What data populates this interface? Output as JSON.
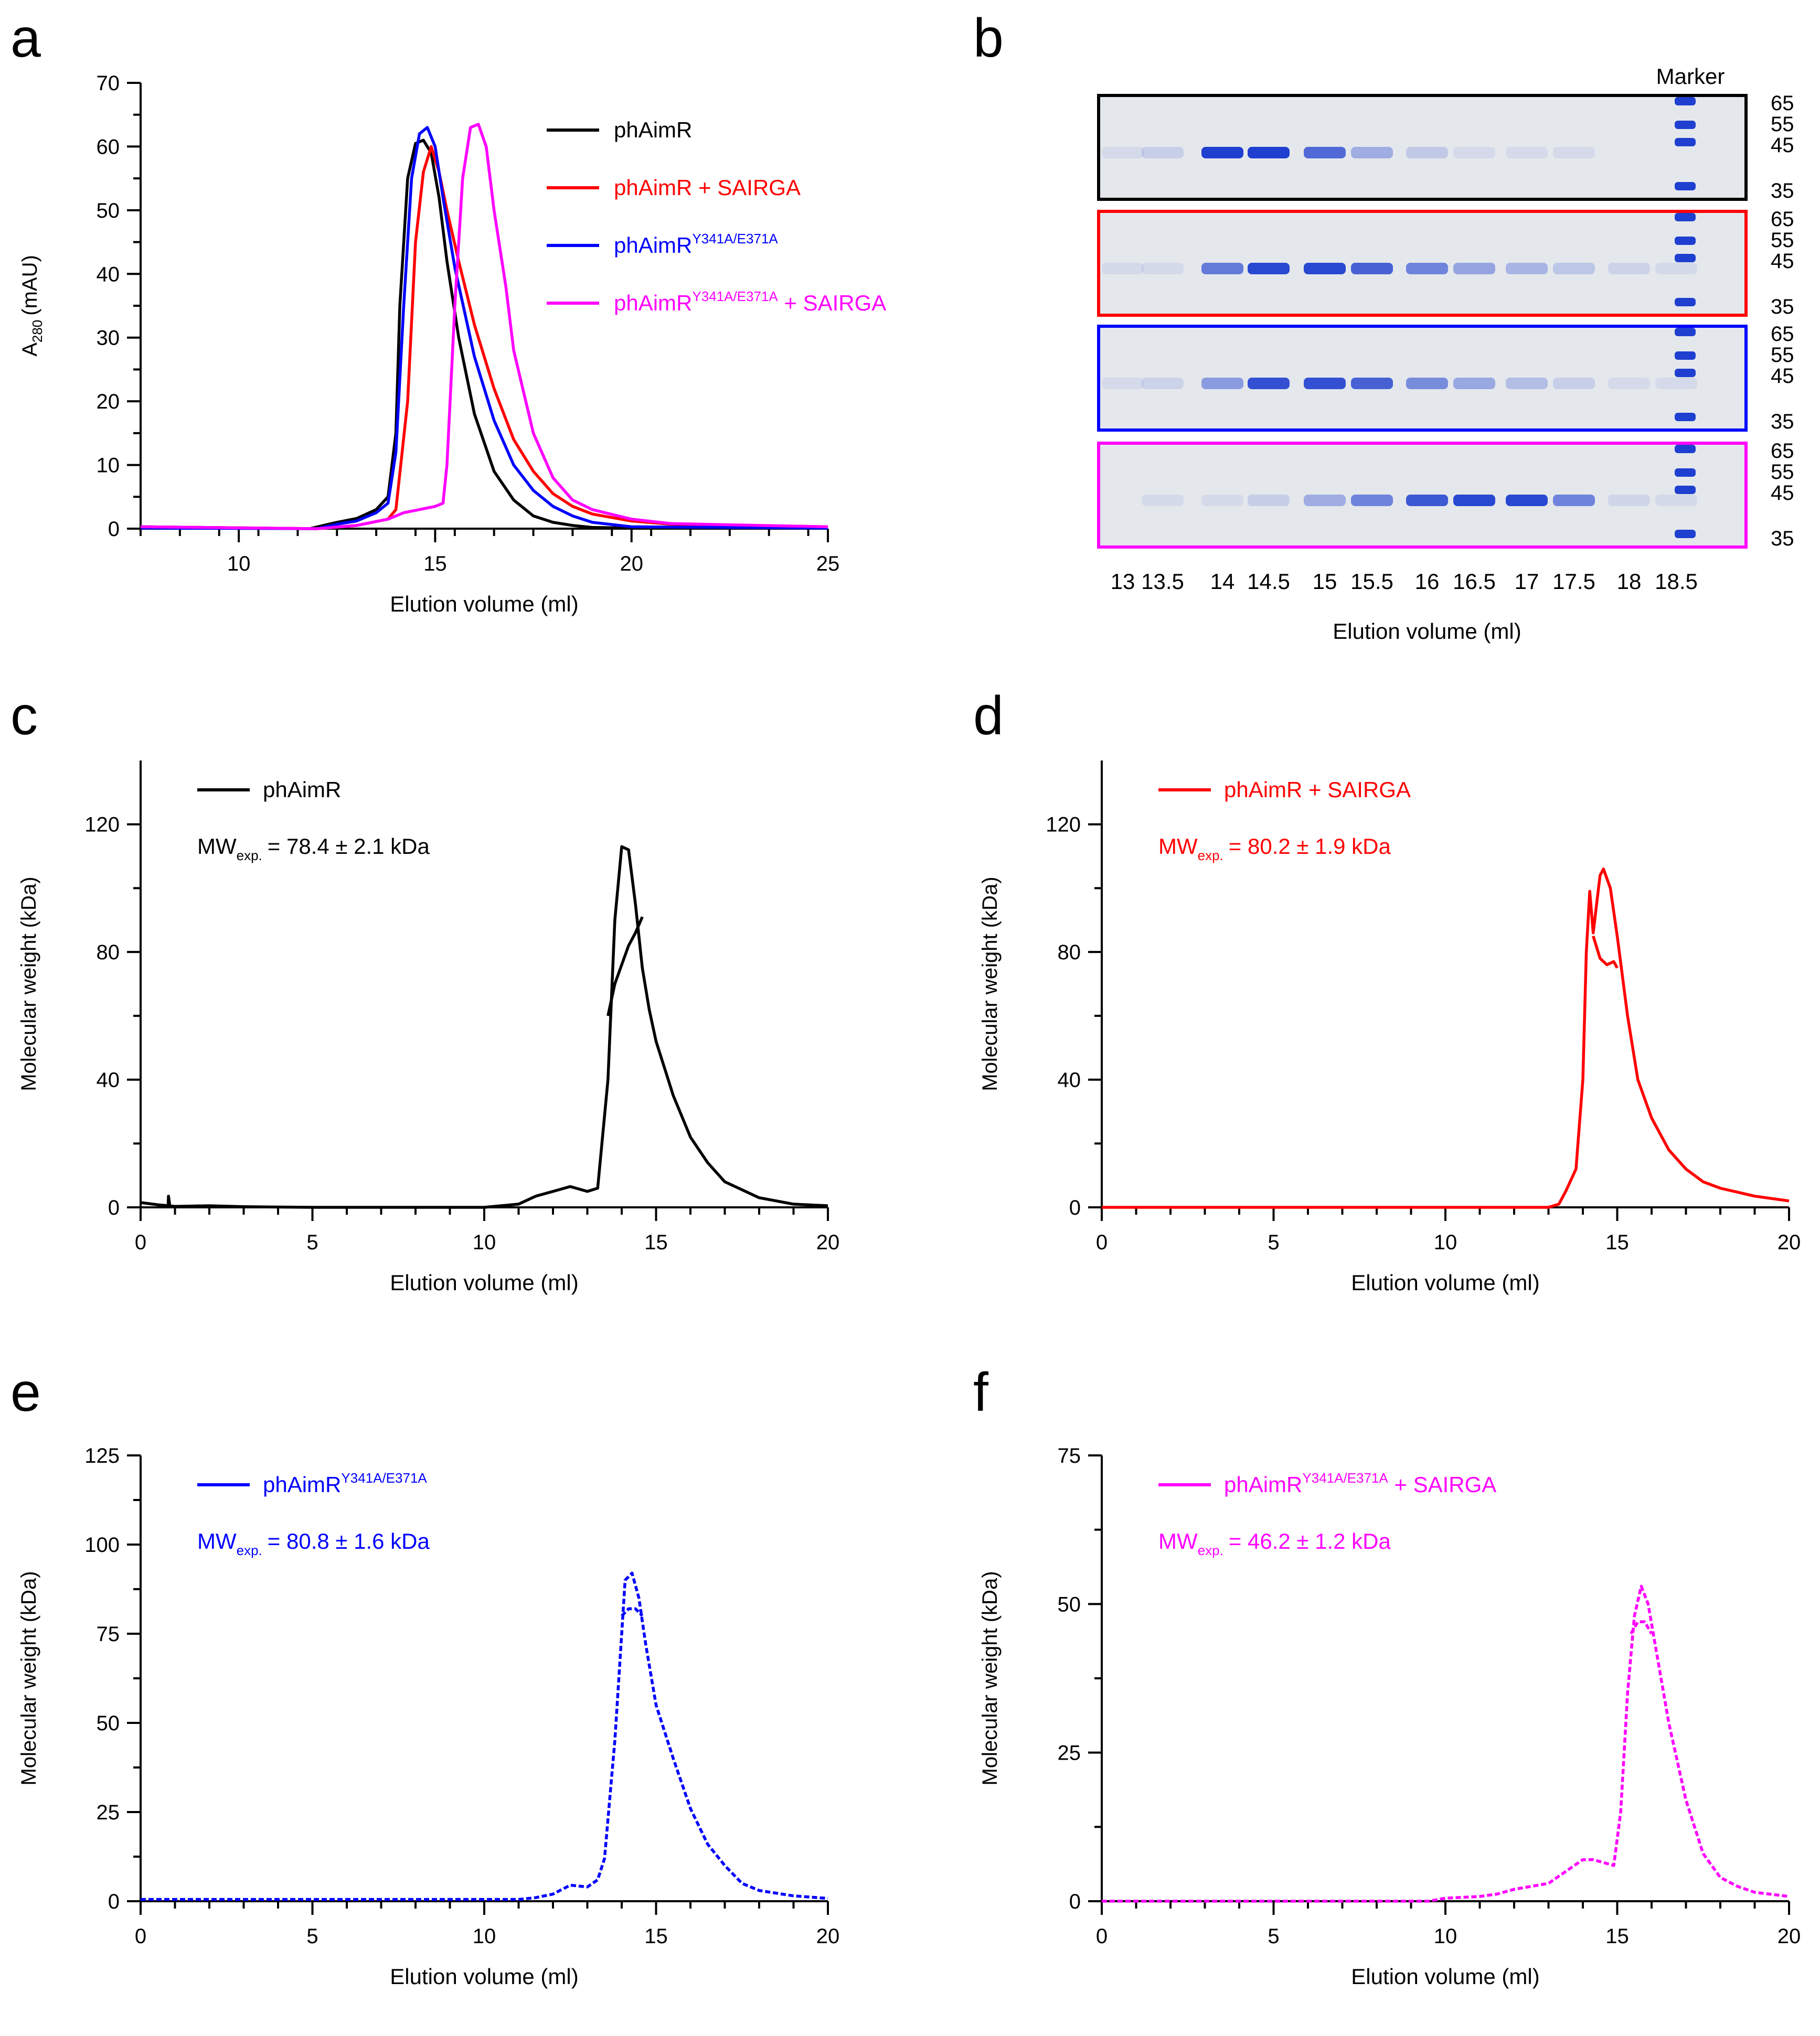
{
  "colors": {
    "black": "#000000",
    "red": "#ff0000",
    "blue": "#0000ff",
    "magenta": "#ff00ff",
    "gel_band": "#1f3fd0",
    "gel_bg": "#e4e8ec"
  },
  "chart_data": [
    {
      "panel": "a",
      "type": "line",
      "xlabel": "Elution volume (ml)",
      "ylabel": "A",
      "ylabel_sub": "280",
      "ylabel_unit": "(mAU)",
      "xlim": [
        7.5,
        25
      ],
      "ylim": [
        0,
        70
      ],
      "xticks": [
        10,
        15,
        20,
        25
      ],
      "yticks": [
        0,
        10,
        20,
        30,
        40,
        50,
        60,
        70
      ],
      "legend": [
        {
          "base": "phAimR",
          "sup": "",
          "suffix": "",
          "color": "#000000"
        },
        {
          "base": "phAimR + SAIRGA",
          "sup": "",
          "suffix": "",
          "color": "#ff0000"
        },
        {
          "base": "phAimR",
          "sup": "Y341A/E371A",
          "suffix": "",
          "color": "#0000ff"
        },
        {
          "base": "phAimR",
          "sup": "Y341A/E371A",
          "suffix": " + SAIRGA",
          "color": "#ff00ff"
        }
      ],
      "series": [
        {
          "name": "phAimR",
          "color": "#000000",
          "x": [
            7.5,
            11.8,
            12.5,
            13.0,
            13.5,
            13.8,
            14.0,
            14.1,
            14.3,
            14.5,
            14.7,
            14.9,
            15.1,
            15.3,
            15.6,
            16.0,
            16.5,
            17.0,
            17.5,
            18.0,
            18.5,
            19.0,
            20.0,
            25.0
          ],
          "values": [
            0.3,
            0,
            1.0,
            1.6,
            3.0,
            5.0,
            15.0,
            35.0,
            55.0,
            60.5,
            61.0,
            59.0,
            52.0,
            42.0,
            30.0,
            18.0,
            9.0,
            4.5,
            2.0,
            1.0,
            0.5,
            0.2,
            0.1,
            0.1
          ]
        },
        {
          "name": "phAimR + SAIRGA",
          "color": "#ff0000",
          "x": [
            7.5,
            12.0,
            13.0,
            13.8,
            14.0,
            14.3,
            14.5,
            14.7,
            14.9,
            15.1,
            15.3,
            15.6,
            16.0,
            16.5,
            17.0,
            17.5,
            18.0,
            18.5,
            19.0,
            20.0,
            21.0,
            25.0
          ],
          "values": [
            0.3,
            0,
            0.5,
            1.5,
            3.0,
            20.0,
            45.0,
            56.0,
            60.0,
            56.0,
            50.0,
            42.0,
            32.0,
            22.0,
            14.0,
            9.0,
            5.5,
            3.5,
            2.3,
            1.2,
            0.7,
            0.3
          ]
        },
        {
          "name": "phAimR Y341A/E371A",
          "color": "#0000ff",
          "x": [
            7.5,
            12.0,
            12.5,
            13.0,
            13.5,
            13.8,
            14.0,
            14.2,
            14.4,
            14.6,
            14.8,
            15.0,
            15.2,
            15.5,
            16.0,
            16.5,
            17.0,
            17.5,
            18.0,
            18.5,
            19.0,
            20.0,
            25.0
          ],
          "values": [
            0.1,
            0,
            0.7,
            1.2,
            2.5,
            4.0,
            12.0,
            35.0,
            55.0,
            62.0,
            63.0,
            60.0,
            52.0,
            41.0,
            27.0,
            17.0,
            10.0,
            6.0,
            3.5,
            2.0,
            1.0,
            0.3,
            0.1
          ]
        },
        {
          "name": "phAimR Y341A/E371A + SAIRGA",
          "color": "#ff00ff",
          "x": [
            7.5,
            12.0,
            13.0,
            13.8,
            14.2,
            14.6,
            15.0,
            15.2,
            15.3,
            15.5,
            15.7,
            15.9,
            16.1,
            16.3,
            16.5,
            16.8,
            17.0,
            17.5,
            18.0,
            18.5,
            19.0,
            20.0,
            21.0,
            25.0
          ],
          "values": [
            0.3,
            0,
            0.5,
            1.5,
            2.5,
            3.0,
            3.5,
            4.0,
            10.0,
            35.0,
            55.0,
            63.0,
            63.5,
            60.0,
            50.0,
            38.0,
            28.0,
            15.0,
            8.0,
            4.5,
            3.0,
            1.5,
            0.8,
            0.3
          ]
        }
      ]
    },
    {
      "panel": "b",
      "type": "gel",
      "xlabel": "Elution volume (ml)",
      "lanes": [
        "13",
        "13.5",
        "14",
        "14.5",
        "15",
        "15.5",
        "16",
        "16.5",
        "17",
        "17.5",
        "18",
        "18.5"
      ],
      "marker_label": "Marker",
      "marker_kda": [
        "65",
        "55",
        "45",
        "35"
      ],
      "gels": [
        {
          "color": "#000000",
          "band_intensity": [
            0.05,
            0.15,
            1.0,
            1.0,
            0.75,
            0.35,
            0.18,
            0.06,
            0.03,
            0.02,
            0,
            0
          ]
        },
        {
          "color": "#ff0000",
          "band_intensity": [
            0.02,
            0.05,
            0.65,
            0.95,
            0.95,
            0.8,
            0.6,
            0.4,
            0.3,
            0.2,
            0.12,
            0.05
          ]
        },
        {
          "color": "#0000ff",
          "band_intensity": [
            0.05,
            0.12,
            0.45,
            0.9,
            0.9,
            0.8,
            0.55,
            0.38,
            0.25,
            0.15,
            0.08,
            0.03
          ]
        },
        {
          "color": "#ff00ff",
          "band_intensity": [
            0,
            0.03,
            0.05,
            0.15,
            0.35,
            0.6,
            0.85,
            0.95,
            0.95,
            0.6,
            0.1,
            0.02
          ]
        }
      ]
    },
    {
      "panel": "c",
      "type": "line",
      "xlabel": "Elution volume (ml)",
      "ylabel": "Molecular weight (kDa)",
      "xlim": [
        0,
        20
      ],
      "ylim": [
        0,
        140
      ],
      "xticks": [
        0,
        5,
        10,
        15,
        20
      ],
      "yticks": [
        0,
        40,
        80,
        120
      ],
      "legend_label": "phAimR",
      "legend_sup": "",
      "legend_suffix": "",
      "mw_value": "= 78.4 ± 2.1 kDa",
      "color": "#000000",
      "dotted": false,
      "series": [
        {
          "name": "phAimR",
          "x": [
            0,
            0.5,
            0.8,
            0.81,
            0.85,
            1.0,
            2.0,
            3.0,
            5.0,
            8.0,
            10.0,
            11.0,
            11.5,
            12.0,
            12.5,
            13.0,
            13.3,
            13.6,
            13.8,
            14.0,
            14.2,
            14.4,
            14.6,
            14.8,
            15.0,
            15.5,
            16.0,
            16.5,
            17.0,
            18.0,
            19.0,
            20.0
          ],
          "values": [
            1.5,
            0.8,
            0.5,
            3.5,
            0.5,
            0.3,
            0.5,
            0.2,
            0,
            0,
            0,
            1.0,
            3.5,
            5.0,
            6.5,
            5.0,
            6.0,
            40.0,
            90.0,
            113.0,
            112.0,
            95.0,
            75.0,
            62.0,
            52.0,
            35.0,
            22.0,
            14.0,
            8.0,
            3.0,
            1.0,
            0.5
          ]
        },
        {
          "name": "phAimR branch",
          "x": [
            13.6,
            13.8,
            14.0,
            14.2,
            14.4,
            14.6
          ],
          "values": [
            60.0,
            70.0,
            76.0,
            82.0,
            86.0,
            91.0
          ]
        }
      ]
    },
    {
      "panel": "d",
      "type": "line",
      "xlabel": "Elution volume (ml)",
      "ylabel": "Molecular weight (kDa)",
      "xlim": [
        0,
        20
      ],
      "ylim": [
        0,
        140
      ],
      "xticks": [
        0,
        5,
        10,
        15,
        20
      ],
      "yticks": [
        0,
        40,
        80,
        120
      ],
      "legend_label": "phAimR + SAIRGA",
      "legend_sup": "",
      "legend_suffix": "",
      "mw_value": "= 80.2 ± 1.9 kDa",
      "color": "#ff0000",
      "dotted": false,
      "series": [
        {
          "name": "phAimR + SAIRGA",
          "x": [
            0,
            13.0,
            13.3,
            13.5,
            13.8,
            14.0,
            14.1,
            14.2,
            14.3,
            14.4,
            14.5,
            14.6,
            14.8,
            15.0,
            15.3,
            15.6,
            16.0,
            16.5,
            17.0,
            17.5,
            18.0,
            19.0,
            20.0
          ],
          "values": [
            0,
            0,
            1.0,
            5.0,
            12.0,
            40.0,
            80.0,
            99.0,
            86.0,
            95.0,
            104.0,
            106.0,
            100.0,
            85.0,
            60.0,
            40.0,
            28.0,
            18.0,
            12.0,
            8.0,
            6.0,
            3.5,
            2.0
          ]
        },
        {
          "name": "phAimR + SAIRGA branch",
          "x": [
            14.3,
            14.5,
            14.7,
            14.9,
            15.0
          ],
          "values": [
            85.0,
            78.0,
            76.0,
            77.0,
            75.0
          ]
        }
      ]
    },
    {
      "panel": "e",
      "type": "line",
      "xlabel": "Elution volume (ml)",
      "ylabel": "Molecular weight (kDa)",
      "xlim": [
        0,
        20
      ],
      "ylim": [
        0,
        125
      ],
      "xticks": [
        0,
        5,
        10,
        15,
        20
      ],
      "yticks": [
        0,
        25,
        50,
        75,
        100,
        125
      ],
      "legend_label": "phAimR",
      "legend_sup": "Y341A/E371A",
      "legend_suffix": "",
      "mw_value": "= 80.8 ± 1.6 kDa",
      "color": "#0000ff",
      "dotted": true,
      "series": [
        {
          "name": "phAimR Y341A/E371A",
          "x": [
            0,
            11.0,
            11.5,
            12.0,
            12.5,
            13.0,
            13.3,
            13.5,
            13.8,
            14.0,
            14.1,
            14.3,
            14.5,
            14.7,
            15.0,
            15.5,
            16.0,
            16.5,
            17.0,
            17.5,
            18.0,
            19.0,
            20.0
          ],
          "values": [
            0.5,
            0.5,
            1.0,
            2.0,
            4.5,
            4.0,
            6.0,
            12.0,
            45.0,
            75.0,
            90.0,
            92.0,
            85.0,
            72.0,
            55.0,
            40.0,
            26.0,
            16.0,
            10.0,
            5.0,
            3.0,
            1.5,
            0.8
          ]
        },
        {
          "name": "phAimR Y341A/E371A branch",
          "x": [
            14.0,
            14.2,
            14.4,
            14.6
          ],
          "values": [
            80.0,
            82.0,
            82.0,
            80.0
          ]
        }
      ]
    },
    {
      "panel": "f",
      "type": "line",
      "xlabel": "Elution volume (ml)",
      "ylabel": "Molecular weight (kDa)",
      "xlim": [
        0,
        20
      ],
      "ylim": [
        0,
        75
      ],
      "xticks": [
        0,
        5,
        10,
        15,
        20
      ],
      "yticks": [
        0,
        25,
        50,
        75
      ],
      "legend_label": "phAimR",
      "legend_sup": "Y341A/E371A",
      "legend_suffix": " + SAIRGA",
      "mw_value": "= 46.2 ± 1.2 kDa",
      "color": "#ff00ff",
      "dotted": true,
      "series": [
        {
          "name": "phAimR Y341A/E371A + SAIRGA",
          "x": [
            0,
            9.5,
            10.0,
            11.0,
            11.5,
            12.0,
            12.5,
            13.0,
            13.5,
            14.0,
            14.3,
            14.6,
            14.9,
            15.1,
            15.3,
            15.5,
            15.7,
            15.9,
            16.2,
            16.5,
            17.0,
            17.5,
            18.0,
            18.5,
            19.0,
            20.0
          ],
          "values": [
            0,
            0,
            0.5,
            0.8,
            1.2,
            2.0,
            2.5,
            3.0,
            5.0,
            7.0,
            7.0,
            6.5,
            6.0,
            15.0,
            35.0,
            48.0,
            53.0,
            50.0,
            40.0,
            30.0,
            17.0,
            8.0,
            4.0,
            2.5,
            1.5,
            0.8
          ]
        },
        {
          "name": "phAimR Y341A/E371A + SAIRGA branch",
          "x": [
            15.4,
            15.6,
            15.8,
            16.0
          ],
          "values": [
            45.0,
            47.0,
            47.0,
            45.0
          ]
        }
      ]
    }
  ],
  "panel_letters": [
    "a",
    "b",
    "c",
    "d",
    "e",
    "f"
  ],
  "mw_prefix": "MW",
  "mw_sub": "exp."
}
